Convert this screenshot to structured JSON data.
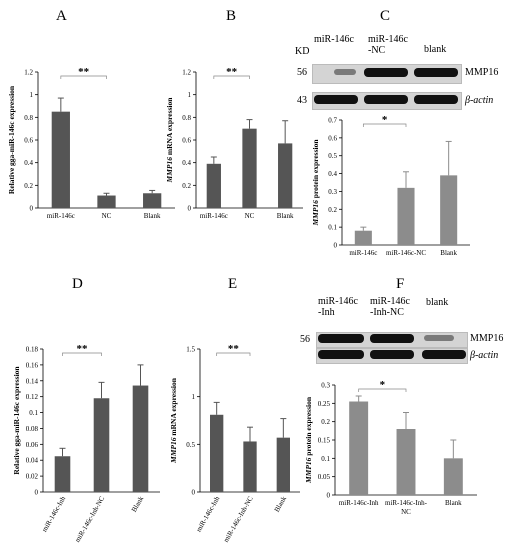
{
  "panels": [
    {
      "letter": "A"
    },
    {
      "letter": "B"
    },
    {
      "letter": "C"
    },
    {
      "letter": "D"
    },
    {
      "letter": "E"
    },
    {
      "letter": "F"
    }
  ],
  "blots": {
    "c": {
      "kd_label": "KD",
      "lane_labels": [
        "miR-146c",
        "miR-146c\n-NC",
        "blank"
      ],
      "row_markers": [
        "56",
        "43"
      ],
      "row_labels": [
        "MMP16",
        "β-actin"
      ]
    },
    "f": {
      "lane_labels": [
        "miR-146c\n-Inh",
        "miR-146c\n-Inh-NC",
        "blank"
      ],
      "row_markers": [
        "56"
      ],
      "row_labels": [
        "MMP16",
        "β-actin"
      ]
    }
  },
  "chart_data": [
    {
      "panel": "A",
      "type": "bar",
      "categories": [
        "miR-146c",
        "NC",
        "Blank"
      ],
      "values": [
        0.85,
        0.11,
        0.13
      ],
      "errors": [
        0.12,
        0.02,
        0.025
      ],
      "ylabel": "Relative gga-miR-146c expression",
      "ylim": [
        0,
        1.2
      ],
      "yticks": [
        "0",
        "0.2",
        "0.4",
        "0.6",
        "0.8",
        "1",
        "1.2"
      ],
      "significance": "**",
      "bar_color": "#555555"
    },
    {
      "panel": "B",
      "type": "bar",
      "categories": [
        "miR-146c",
        "NC",
        "Blank"
      ],
      "values": [
        0.39,
        0.7,
        0.57
      ],
      "errors": [
        0.06,
        0.08,
        0.2
      ],
      "ylabel": "MMP16 mRNA expression",
      "ylim": [
        0,
        1.2
      ],
      "yticks": [
        "0",
        "0.2",
        "0.4",
        "0.6",
        "0.8",
        "1",
        "1.2"
      ],
      "significance": "**",
      "bar_color": "#555555"
    },
    {
      "panel": "C",
      "type": "bar",
      "categories": [
        "miR-146c",
        "miR-146c-NC",
        "Blank"
      ],
      "values": [
        0.08,
        0.32,
        0.39
      ],
      "errors": [
        0.02,
        0.09,
        0.19
      ],
      "ylabel": "MMP16 protein expression",
      "ylim": [
        0,
        0.7
      ],
      "yticks": [
        "0",
        "0.1",
        "0.2",
        "0.3",
        "0.4",
        "0.5",
        "0.6",
        "0.7"
      ],
      "significance": "*",
      "bar_color": "#8c8c8c"
    },
    {
      "panel": "D",
      "type": "bar",
      "categories": [
        "miR-146c-Inh",
        "miR-146c-Inh-NC",
        "Blank"
      ],
      "values": [
        0.045,
        0.118,
        0.134
      ],
      "errors": [
        0.01,
        0.02,
        0.026
      ],
      "ylabel": "Relative gga-miR-146c expression",
      "ylim": [
        0,
        0.18
      ],
      "yticks": [
        "0",
        "0.02",
        "0.04",
        "0.06",
        "0.08",
        "0.1",
        "0.12",
        "0.14",
        "0.16",
        "0.18"
      ],
      "significance": "**",
      "bar_color": "#555555"
    },
    {
      "panel": "E",
      "type": "bar",
      "categories": [
        "miR-146c-Inh",
        "miR-146c-Inh-NC",
        "Blank"
      ],
      "values": [
        0.81,
        0.53,
        0.57
      ],
      "errors": [
        0.13,
        0.15,
        0.2
      ],
      "ylabel": "MMP16 mRNA expression",
      "ylim": [
        0,
        1.5
      ],
      "yticks": [
        "0",
        "0.5",
        "1",
        "1.5"
      ],
      "significance": "**",
      "bar_color": "#555555"
    },
    {
      "panel": "F",
      "type": "bar",
      "categories": [
        "miR-146c-Inh",
        "miR-146c-Inh-\nNC",
        "Blank"
      ],
      "values": [
        0.255,
        0.18,
        0.1
      ],
      "errors": [
        0.015,
        0.045,
        0.05
      ],
      "ylabel": "MMP16 protein expression",
      "ylim": [
        0,
        0.3
      ],
      "yticks": [
        "0",
        "0.05",
        "0.1",
        "0.15",
        "0.2",
        "0.25",
        "0.3"
      ],
      "significance": "*",
      "bar_color": "#8c8c8c"
    }
  ]
}
